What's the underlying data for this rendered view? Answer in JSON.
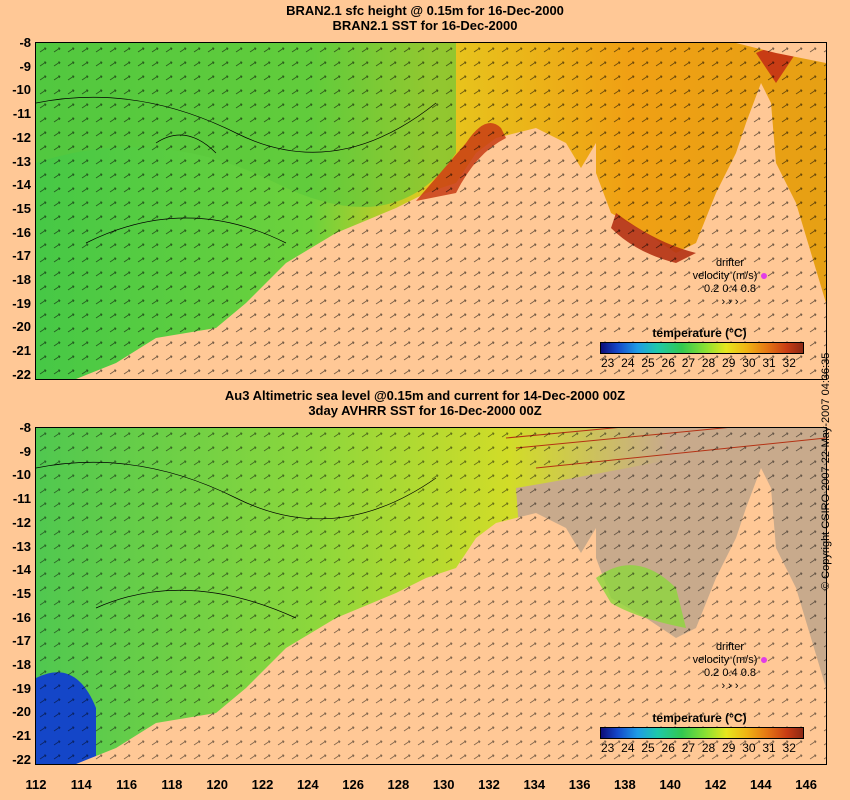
{
  "panels": [
    {
      "title_line1": "BRAN2.1 sfc height @ 0.15m for 16-Dec-2000",
      "title_line2": "BRAN2.1 SST for 16-Dec-2000",
      "legend_title": "temperature (°C)",
      "legend_ticks": [
        "23",
        "24",
        "25",
        "26",
        "27",
        "28",
        "29",
        "30",
        "31",
        "32"
      ],
      "drifter_label1": "drifter",
      "drifter_label2": "velocity (m/s)",
      "drifter_scale": "0.2 0.4 0.8",
      "drifter_arrows": "›  ›  ›"
    },
    {
      "title_line1": "Au3 Altimetric sea level  @0.15m and current for 14-Dec-2000 00Z",
      "title_line2": "3day AVHRR SST for 16-Dec-2000 00Z",
      "legend_title": "temperature (°C)",
      "legend_ticks": [
        "23",
        "24",
        "25",
        "26",
        "27",
        "28",
        "29",
        "30",
        "31",
        "32"
      ],
      "drifter_label1": "drifter",
      "drifter_label2": "velocity (m/s)",
      "drifter_scale": "0.2 0.4 0.8",
      "drifter_arrows": "›  ›  ›"
    }
  ],
  "latitudes": [
    "-8",
    "-9",
    "-10",
    "-11",
    "-12",
    "-13",
    "-14",
    "-15",
    "-16",
    "-17",
    "-18",
    "-19",
    "-20",
    "-21",
    "-22"
  ],
  "longitudes": [
    "112",
    "114",
    "116",
    "118",
    "120",
    "122",
    "124",
    "126",
    "128",
    "130",
    "132",
    "134",
    "136",
    "138",
    "140",
    "142",
    "144",
    "146"
  ],
  "copyright": "© Copyright CSIRO 2007  22-May-2007 04:36:35",
  "colors": {
    "land": "#ffc896",
    "cold": "#1446c8",
    "mid": "#46c846",
    "warm": "#e6a014",
    "hot": "#b43214",
    "cloud": "#c8aa8c"
  }
}
